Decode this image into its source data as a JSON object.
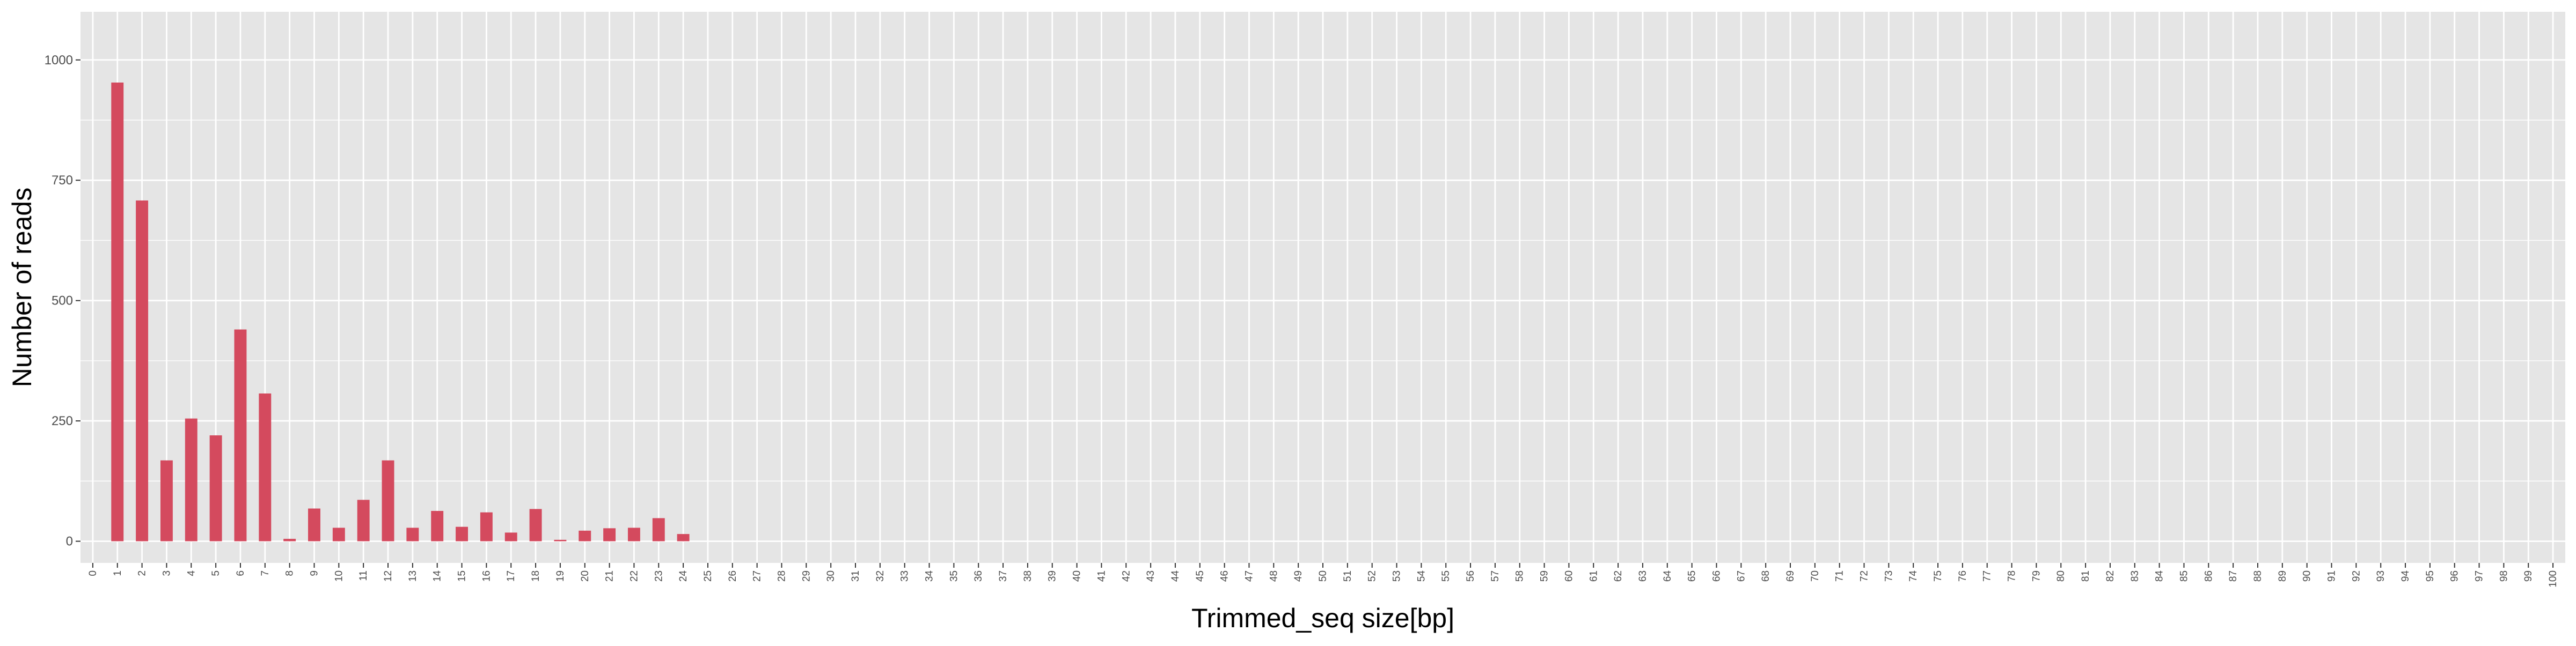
{
  "chart_data": {
    "type": "bar",
    "title": "",
    "xlabel": "Trimmed_seq size[bp]",
    "ylabel": "Number of reads",
    "xlim": [
      0,
      100
    ],
    "ylim": [
      -45,
      1100
    ],
    "yticks": [
      0,
      250,
      500,
      750,
      1000
    ],
    "grid": true,
    "colors": {
      "bar": "#d44a5e",
      "panel": "#e5e5e5",
      "grid": "#ffffff"
    },
    "series": [
      {
        "x": [
          0,
          1,
          2,
          3,
          4,
          5,
          6,
          7,
          8,
          9,
          10,
          11,
          12,
          13,
          14,
          15,
          16,
          17,
          18,
          19,
          20,
          21,
          22,
          23,
          24,
          25,
          26,
          27,
          28,
          29,
          30,
          31,
          32,
          33,
          34,
          35,
          36,
          37,
          38,
          39,
          40,
          41,
          42,
          43,
          44,
          45,
          46,
          47,
          48,
          49,
          50,
          51,
          52,
          53,
          54,
          55,
          56,
          57,
          58,
          59,
          60,
          61,
          62,
          63,
          64,
          65,
          66,
          67,
          68,
          69,
          70,
          71,
          72,
          73,
          74,
          75,
          76,
          77,
          78,
          79,
          80,
          81,
          82,
          83,
          84,
          85,
          86,
          87,
          88,
          89,
          90,
          91,
          92,
          93,
          94,
          95,
          96,
          97,
          98,
          99,
          100
        ],
        "values": [
          0,
          953,
          708,
          168,
          255,
          220,
          440,
          307,
          5,
          68,
          28,
          86,
          168,
          28,
          63,
          30,
          60,
          18,
          67,
          3,
          22,
          27,
          28,
          48,
          15,
          0,
          0,
          0,
          0,
          0,
          0,
          0,
          0,
          0,
          0,
          0,
          0,
          0,
          0,
          0,
          0,
          0,
          0,
          0,
          0,
          0,
          0,
          0,
          0,
          0,
          0,
          0,
          0,
          0,
          0,
          0,
          0,
          0,
          0,
          0,
          0,
          0,
          0,
          0,
          0,
          0,
          0,
          0,
          0,
          0,
          0,
          0,
          0,
          0,
          0,
          0,
          0,
          0,
          0,
          0,
          0,
          0,
          0,
          0,
          0,
          0,
          0,
          0,
          0,
          0,
          0,
          0,
          0,
          0,
          0,
          0,
          0,
          0,
          0,
          0,
          0
        ]
      }
    ]
  }
}
